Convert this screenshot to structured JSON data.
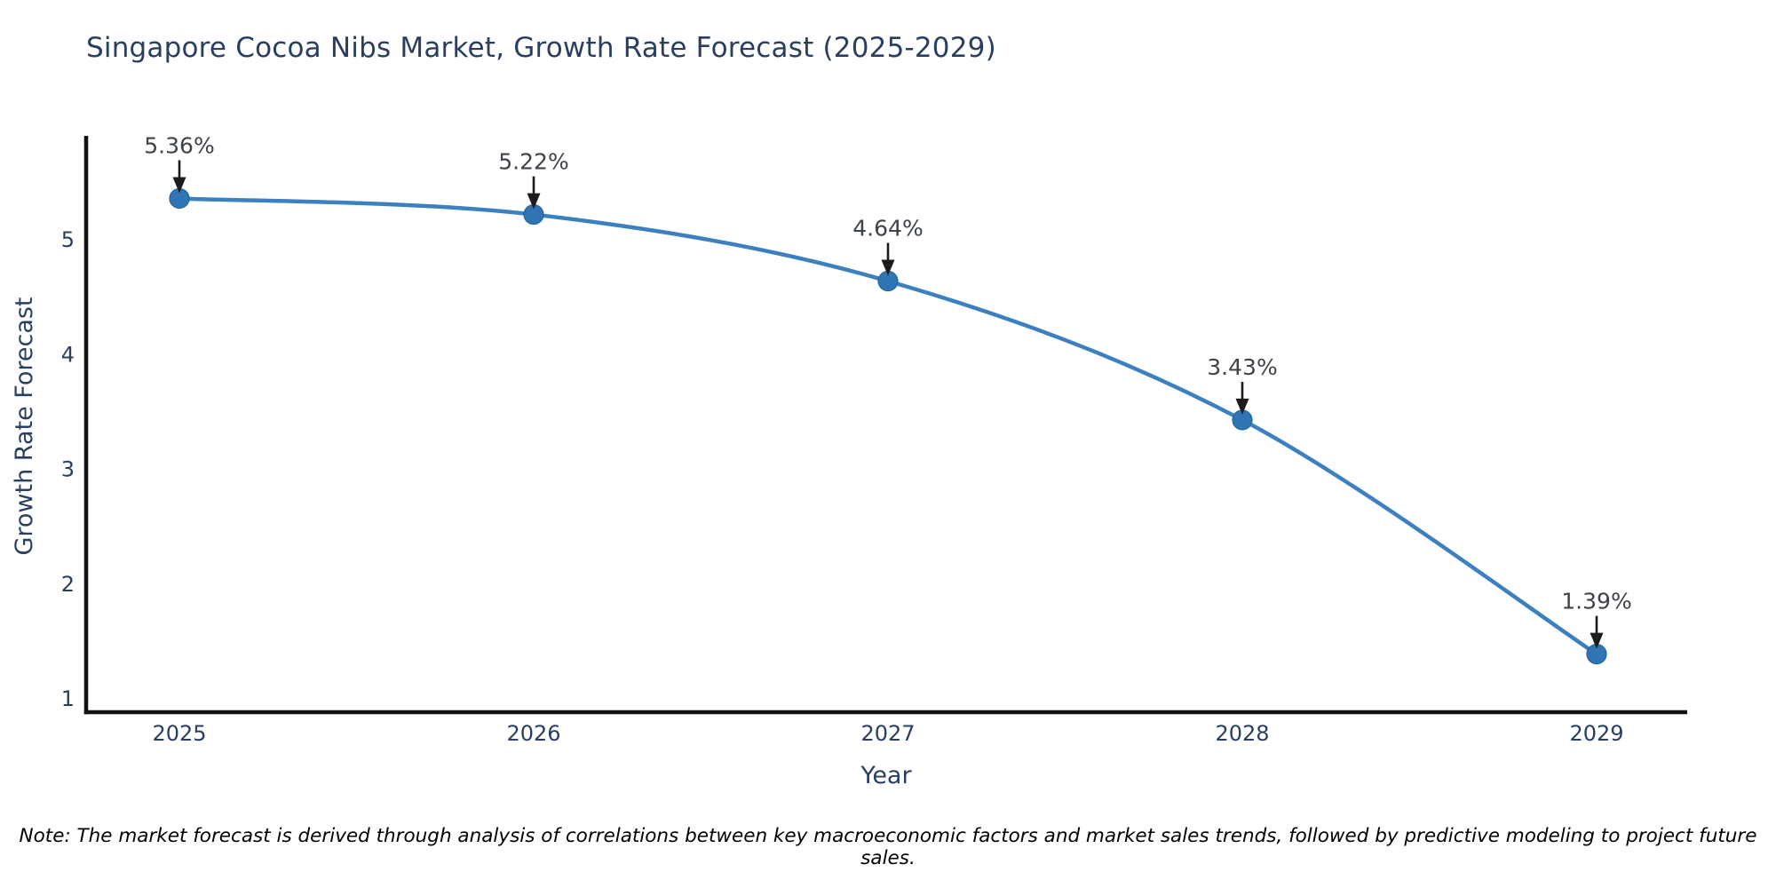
{
  "chart_data": {
    "type": "line",
    "title": "Singapore Cocoa Nibs Market, Growth Rate Forecast (2025-2029)",
    "xlabel": "Year",
    "ylabel": "Growth Rate Forecast",
    "x": [
      2025,
      2026,
      2027,
      2028,
      2029
    ],
    "series": [
      {
        "name": "Growth Rate Forecast",
        "values": [
          5.36,
          5.22,
          4.64,
          3.43,
          1.39
        ]
      }
    ],
    "point_labels": [
      "5.36%",
      "5.22%",
      "4.64%",
      "3.43%",
      "1.39%"
    ],
    "x_tick_labels": [
      "2025",
      "2026",
      "2027",
      "2028",
      "2029"
    ],
    "y_ticks": [
      1,
      2,
      3,
      4,
      5
    ],
    "ylim": [
      1,
      5.9
    ],
    "grid": false,
    "legend": false,
    "marker_style": "circle",
    "annotation_arrows": true,
    "note": "Note: The market forecast is derived through analysis of correlations between key macroeconomic factors and market sales trends, followed by predictive modeling to project future sales.",
    "colors": {
      "line": "#3c80c0",
      "marker": "#2f74b3",
      "marker_edge": "#24669f",
      "axis": "#111111",
      "text": "#2a3f5f",
      "annotation_text": "#3d4349",
      "arrow": "#1c1c1c",
      "note_text": "#000000",
      "background": "#ffffff"
    }
  }
}
